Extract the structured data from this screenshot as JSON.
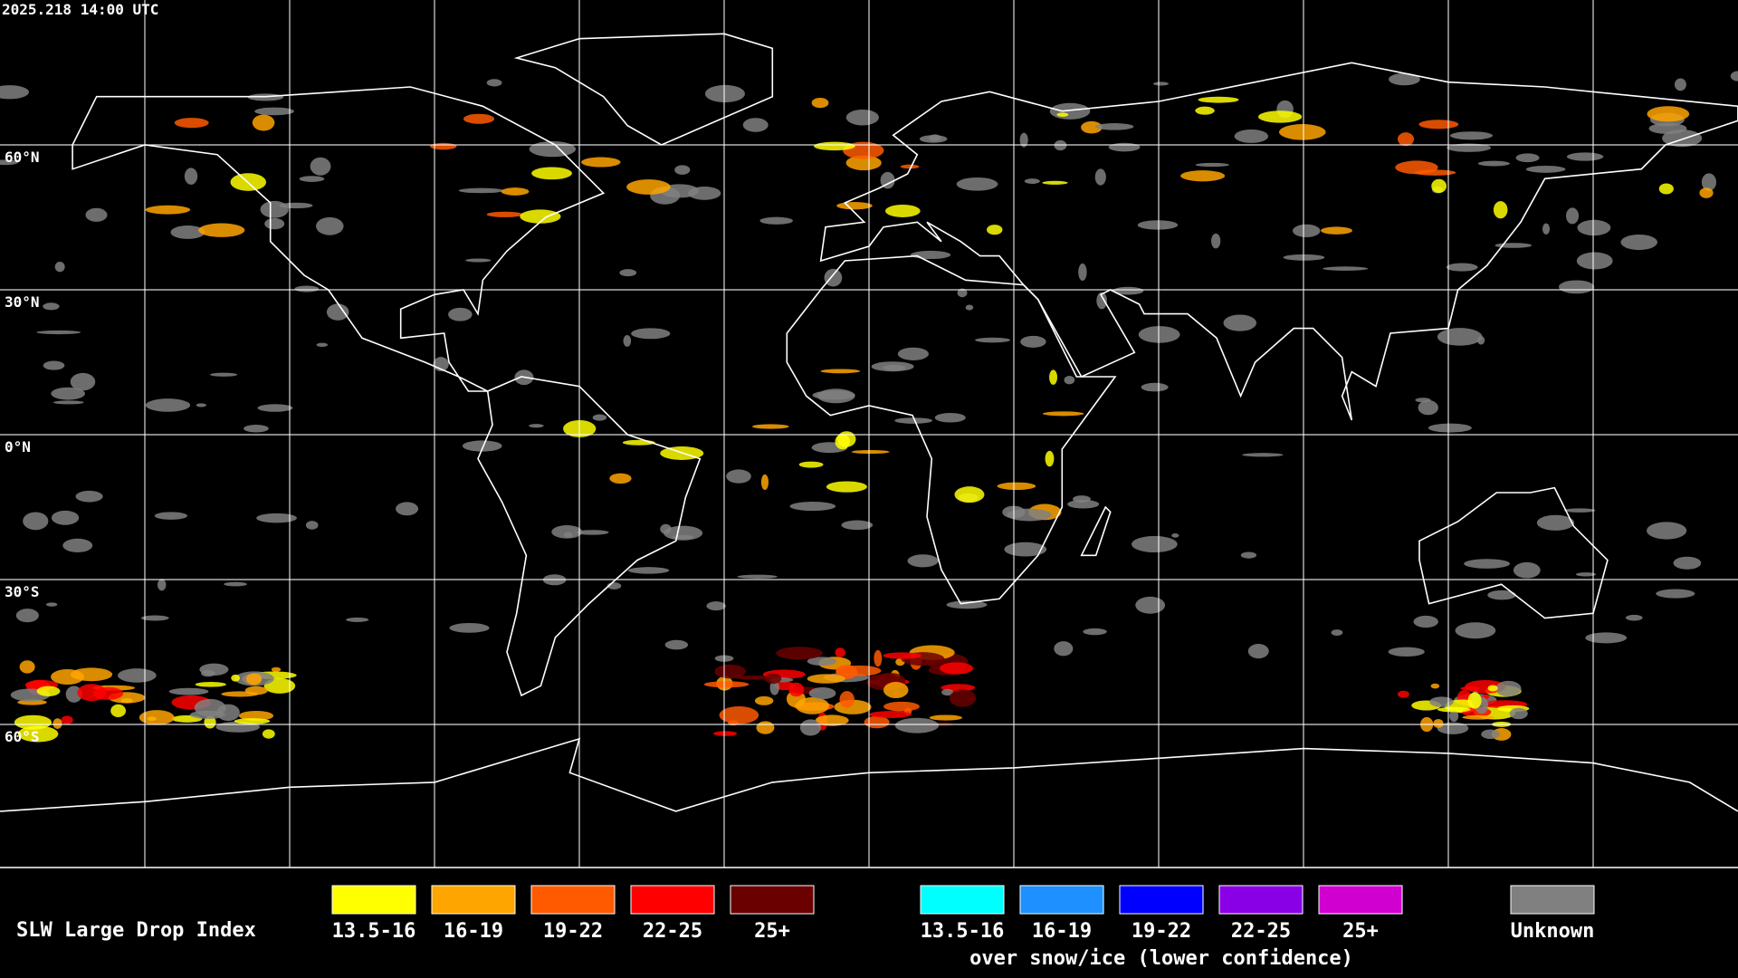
{
  "timestamp": "2025.218 14:00 UTC",
  "latitude_labels": [
    "60°N",
    "30°N",
    "0°N",
    "30°S",
    "60°S"
  ],
  "legend": {
    "title": "SLW Large Drop Index",
    "groups": [
      {
        "items": [
          {
            "label": "13.5-16",
            "color": "#ffff00"
          },
          {
            "label": "16-19",
            "color": "#ffa500"
          },
          {
            "label": "19-22",
            "color": "#ff5a00"
          },
          {
            "label": "22-25",
            "color": "#ff0000"
          },
          {
            "label": "25+",
            "color": "#6b0000"
          }
        ]
      },
      {
        "subtitle": "over snow/ice (lower confidence)",
        "items": [
          {
            "label": "13.5-16",
            "color": "#00ffff"
          },
          {
            "label": "16-19",
            "color": "#1e90ff"
          },
          {
            "label": "19-22",
            "color": "#0000ff"
          },
          {
            "label": "22-25",
            "color": "#8a00e6"
          },
          {
            "label": "25+",
            "color": "#d000d0"
          }
        ]
      },
      {
        "items": [
          {
            "label": "Unknown",
            "color": "#808080"
          }
        ]
      }
    ]
  }
}
